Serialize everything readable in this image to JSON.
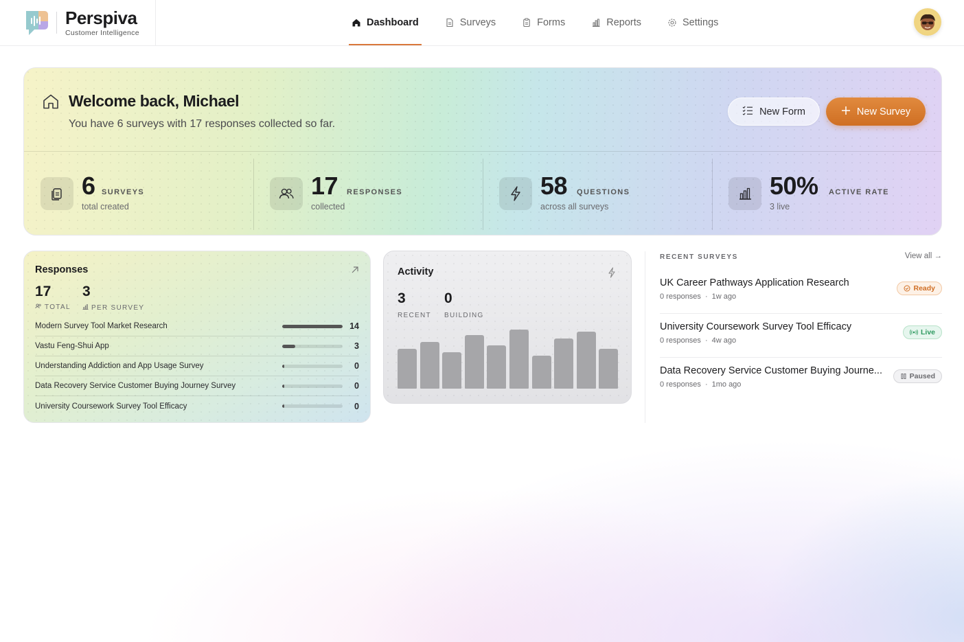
{
  "brand": {
    "name": "Perspiva",
    "tagline": "Customer  Intelligence"
  },
  "nav": [
    {
      "label": "Dashboard",
      "icon": "home-icon",
      "active": true
    },
    {
      "label": "Surveys",
      "icon": "document-icon",
      "active": false
    },
    {
      "label": "Forms",
      "icon": "clipboard-icon",
      "active": false
    },
    {
      "label": "Reports",
      "icon": "bar-chart-icon",
      "active": false
    },
    {
      "label": "Settings",
      "icon": "gear-icon",
      "active": false
    }
  ],
  "hero": {
    "title": "Welcome back, Michael",
    "subtitle": "You have 6 surveys with 17 responses collected so far.",
    "new_form_label": "New Form",
    "new_survey_label": "New Survey"
  },
  "stats": [
    {
      "value": "6",
      "label": "SURVEYS",
      "sub": "total created",
      "icon": "documents-icon"
    },
    {
      "value": "17",
      "label": "RESPONSES",
      "sub": "collected",
      "icon": "users-icon"
    },
    {
      "value": "58",
      "label": "QUESTIONS",
      "sub": "across all surveys",
      "icon": "lightning-icon"
    },
    {
      "value": "50%",
      "label": "ACTIVE RATE",
      "sub": "3 live",
      "icon": "bar-chart-icon"
    }
  ],
  "responses_card": {
    "title": "Responses",
    "total_value": "17",
    "total_label": "TOTAL",
    "per_survey_value": "3",
    "per_survey_label": "PER SURVEY",
    "max": 14,
    "rows": [
      {
        "name": "Modern Survey Tool Market Research",
        "count": 14
      },
      {
        "name": "Vastu Feng-Shui App",
        "count": 3
      },
      {
        "name": "Understanding Addiction and App Usage Survey",
        "count": 0
      },
      {
        "name": "Data Recovery Service Customer Buying Journey Survey",
        "count": 0
      },
      {
        "name": "University Coursework Survey Tool Efficacy",
        "count": 0
      }
    ]
  },
  "activity_card": {
    "title": "Activity",
    "recent_value": "3",
    "recent_label": "RECENT",
    "building_value": "0",
    "building_label": "BUILDING",
    "bars": [
      0.68,
      0.79,
      0.62,
      0.91,
      0.73,
      1.0,
      0.56,
      0.85,
      0.96,
      0.68
    ]
  },
  "recent_surveys": {
    "heading": "RECENT SURVEYS",
    "view_all": "View all →",
    "items": [
      {
        "title": "UK Career Pathways Application Research",
        "responses": "0 responses",
        "time": "1w ago",
        "status": "Ready",
        "status_class": "ready"
      },
      {
        "title": "University Coursework Survey Tool Efficacy",
        "responses": "0 responses",
        "time": "4w ago",
        "status": "Live",
        "status_class": "live"
      },
      {
        "title": "Data Recovery Service Customer Buying Journe...",
        "responses": "0 responses",
        "time": "1mo ago",
        "status": "Paused",
        "status_class": "paused"
      }
    ]
  },
  "colors": {
    "accent": "#d9783a",
    "live": "#2f9a61",
    "ready": "#d06f25"
  }
}
